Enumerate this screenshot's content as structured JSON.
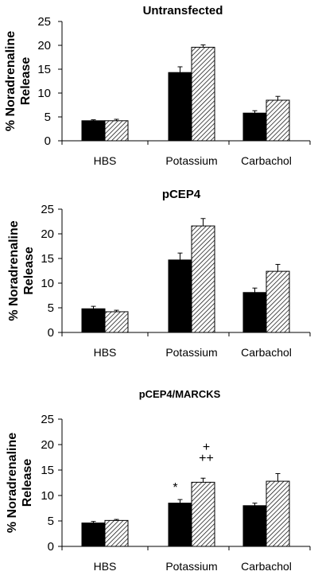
{
  "chart_data": [
    {
      "type": "bar",
      "title": "Untransfected",
      "ylabel": "% Noradrenaline Release",
      "categories": [
        "HBS",
        "Potassium",
        "Carbachol"
      ],
      "ylim": [
        0,
        25
      ],
      "yticks": [
        0,
        5,
        10,
        15,
        20,
        25
      ],
      "series": [
        {
          "style": "solid black",
          "values": [
            4.2,
            14.3,
            5.8
          ],
          "errors": [
            0.2,
            1.2,
            0.5
          ]
        },
        {
          "style": "diagonal hatched",
          "values": [
            4.2,
            19.6,
            8.5
          ],
          "errors": [
            0.3,
            0.5,
            0.8
          ]
        }
      ],
      "annotations": []
    },
    {
      "type": "bar",
      "title": "pCEP4",
      "ylabel": "% Noradrenaline Release",
      "categories": [
        "HBS",
        "Potassium",
        "Carbachol"
      ],
      "ylim": [
        0,
        25
      ],
      "yticks": [
        0,
        5,
        10,
        15,
        20,
        25
      ],
      "series": [
        {
          "style": "solid black",
          "values": [
            4.8,
            14.7,
            8.1
          ],
          "errors": [
            0.5,
            1.4,
            0.9
          ]
        },
        {
          "style": "diagonal hatched",
          "values": [
            4.2,
            21.6,
            12.4
          ],
          "errors": [
            0.3,
            1.5,
            1.4
          ]
        }
      ],
      "annotations": []
    },
    {
      "type": "bar",
      "title": "pCEP4/MARCKS",
      "ylabel": "% Noradrenaline Release",
      "categories": [
        "HBS",
        "Potassium",
        "Carbachol"
      ],
      "ylim": [
        0,
        25
      ],
      "yticks": [
        0,
        5,
        10,
        15,
        20,
        25
      ],
      "series": [
        {
          "style": "solid black",
          "values": [
            4.6,
            8.5,
            8.0
          ],
          "errors": [
            0.3,
            0.7,
            0.5
          ]
        },
        {
          "style": "diagonal hatched",
          "values": [
            5.1,
            12.6,
            12.8
          ],
          "errors": [
            0.2,
            0.8,
            1.5
          ]
        }
      ],
      "annotations": [
        {
          "text": "*",
          "category": 1,
          "series": 0
        },
        {
          "text": "+",
          "category": 1,
          "series": 1
        },
        {
          "text": "++",
          "category": 1,
          "series": 1
        }
      ]
    }
  ]
}
